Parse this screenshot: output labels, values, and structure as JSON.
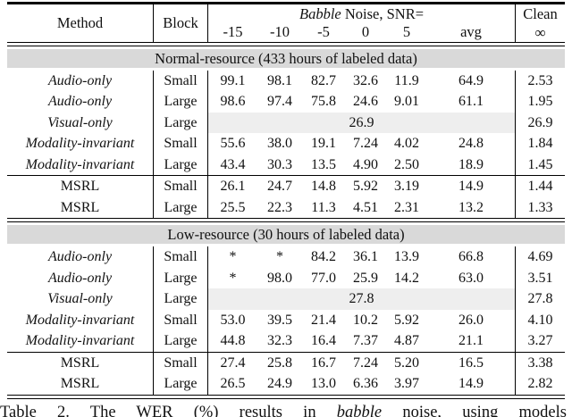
{
  "header": {
    "method": "Method",
    "block": "Block",
    "babble": "Babble",
    "noise_snr": " Noise, SNR=",
    "snr_ticks": [
      "-15",
      "-10",
      "-5",
      "0",
      "5",
      "avg"
    ],
    "clean_line1": "Clean",
    "clean_line2": "∞"
  },
  "sections": [
    {
      "band_label": "Normal-resource (433 hours of labeled data)",
      "groups": [
        {
          "rows": [
            {
              "method": "Audio-only",
              "italic": true,
              "block": "Small",
              "values": [
                "99.1",
                "98.1",
                "82.7",
                "32.6",
                "11.9",
                "64.9"
              ],
              "clean": "2.53"
            },
            {
              "method": "Audio-only",
              "italic": true,
              "block": "Large",
              "values": [
                "98.6",
                "97.4",
                "75.8",
                "24.6",
                "9.01",
                "61.1"
              ],
              "clean": "1.95"
            },
            {
              "method": "Visual-only",
              "italic": true,
              "block": "Large",
              "span": "26.9",
              "clean": "26.9"
            },
            {
              "method": "Modality-invariant",
              "italic": true,
              "block": "Small",
              "values": [
                "55.6",
                "38.0",
                "19.1",
                "7.24",
                "4.02",
                "24.8"
              ],
              "clean": "1.84"
            },
            {
              "method": "Modality-invariant",
              "italic": true,
              "block": "Large",
              "values": [
                "43.4",
                "30.3",
                "13.5",
                "4.90",
                "2.50",
                "18.9"
              ],
              "clean": "1.45"
            }
          ]
        },
        {
          "rows": [
            {
              "method": "MSRL",
              "italic": false,
              "block": "Small",
              "values": [
                "26.1",
                "24.7",
                "14.8",
                "5.92",
                "3.19",
                "14.9"
              ],
              "clean": "1.44"
            },
            {
              "method": "MSRL",
              "italic": false,
              "block": "Large",
              "values": [
                "25.5",
                "22.3",
                "11.3",
                "4.51",
                "2.31",
                "13.2"
              ],
              "clean": "1.33"
            }
          ]
        }
      ]
    },
    {
      "band_label": "Low-resource (30 hours of labeled data)",
      "groups": [
        {
          "rows": [
            {
              "method": "Audio-only",
              "italic": true,
              "block": "Small",
              "values": [
                "*",
                "*",
                "84.2",
                "36.1",
                "13.9",
                "66.8"
              ],
              "clean": "4.69"
            },
            {
              "method": "Audio-only",
              "italic": true,
              "block": "Large",
              "values": [
                "*",
                "98.0",
                "77.0",
                "25.9",
                "14.2",
                "63.0"
              ],
              "clean": "3.51"
            },
            {
              "method": "Visual-only",
              "italic": true,
              "block": "Large",
              "span": "27.8",
              "clean": "27.8"
            },
            {
              "method": "Modality-invariant",
              "italic": true,
              "block": "Small",
              "values": [
                "53.0",
                "39.5",
                "21.4",
                "10.2",
                "5.92",
                "26.0"
              ],
              "clean": "4.10"
            },
            {
              "method": "Modality-invariant",
              "italic": true,
              "block": "Large",
              "values": [
                "44.8",
                "32.3",
                "16.4",
                "7.37",
                "4.87",
                "21.1"
              ],
              "clean": "3.27"
            }
          ]
        },
        {
          "rows": [
            {
              "method": "MSRL",
              "italic": false,
              "block": "Small",
              "values": [
                "27.4",
                "25.8",
                "16.7",
                "7.24",
                "5.20",
                "16.5"
              ],
              "clean": "3.38"
            },
            {
              "method": "MSRL",
              "italic": false,
              "block": "Large",
              "values": [
                "26.5",
                "24.9",
                "13.0",
                "6.36",
                "3.97",
                "14.9"
              ],
              "clean": "2.82"
            }
          ]
        }
      ]
    }
  ],
  "caption": {
    "prefix": "Table 2. The WER (%) results in ",
    "babble": "babble",
    "suffix": " noise, using models"
  },
  "colors": {
    "band_bg": "#d9d9d9",
    "span_bg": "#eeeeee",
    "rule": "#000000",
    "text": "#111111"
  }
}
